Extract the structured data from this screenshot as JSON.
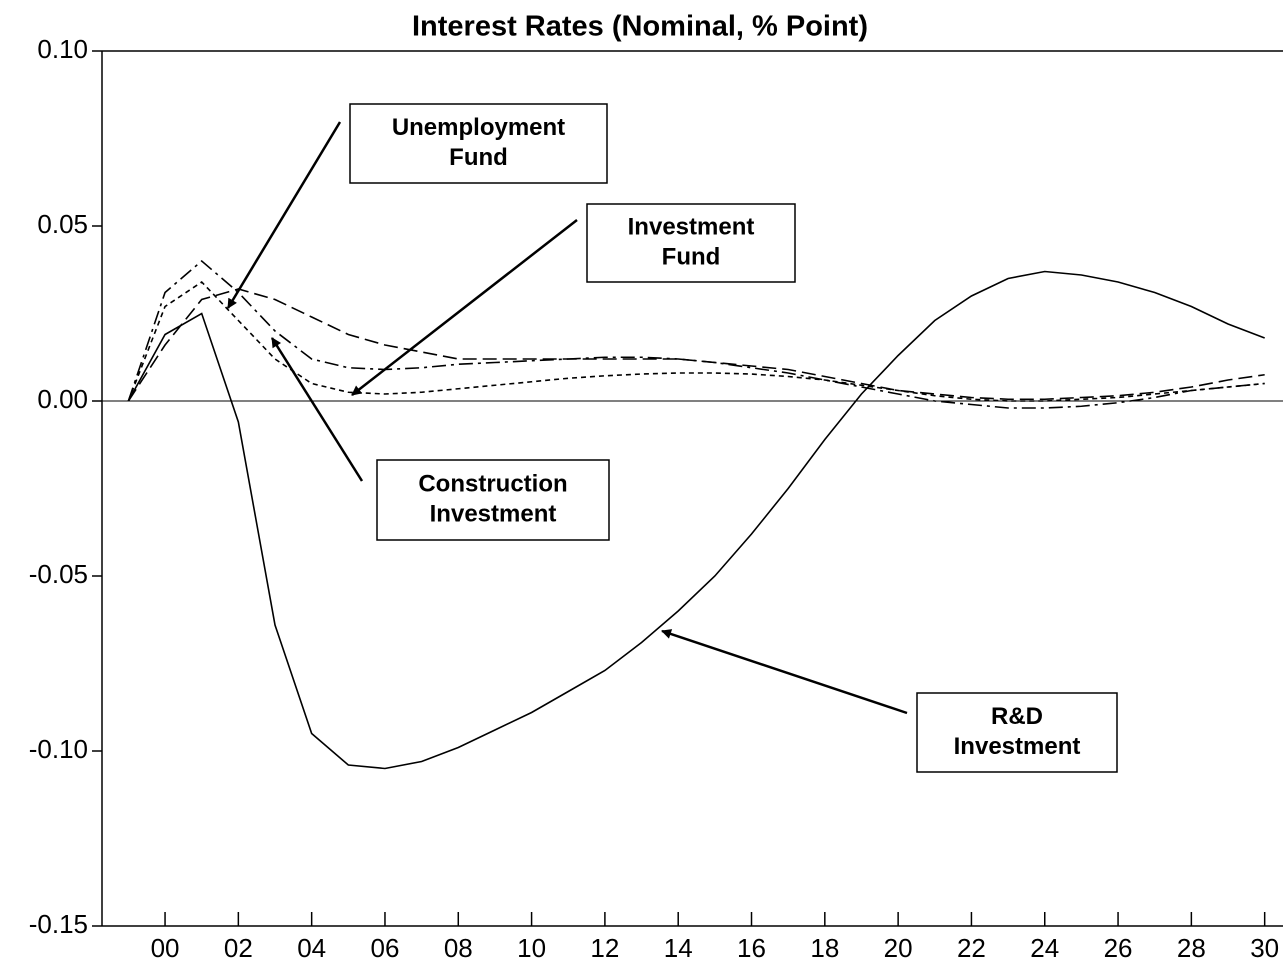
{
  "chart_data": {
    "type": "line",
    "title": "Interest Rates (Nominal, % Point)",
    "x": [
      -1,
      0,
      1,
      2,
      3,
      4,
      5,
      6,
      7,
      8,
      9,
      10,
      11,
      12,
      13,
      14,
      15,
      16,
      17,
      18,
      19,
      20,
      21,
      22,
      23,
      24,
      25,
      26,
      27,
      28,
      29,
      30
    ],
    "xlim": [
      -1.72,
      30.5
    ],
    "xticks": [
      {
        "value": 0,
        "label": "00"
      },
      {
        "value": 2,
        "label": "02"
      },
      {
        "value": 4,
        "label": "04"
      },
      {
        "value": 6,
        "label": "06"
      },
      {
        "value": 8,
        "label": "08"
      },
      10,
      12,
      14,
      16,
      18,
      20,
      22,
      24,
      26,
      28,
      30
    ],
    "ylim": [
      -0.15,
      0.1
    ],
    "yticks": [
      {
        "value": -0.15,
        "label": "-0.15"
      },
      {
        "value": -0.1,
        "label": "-0.10"
      },
      {
        "value": -0.05,
        "label": "-0.05"
      },
      {
        "value": 0,
        "label": "0.00"
      },
      {
        "value": 0.05,
        "label": "0.05"
      },
      {
        "value": 0.1,
        "label": "0.10"
      }
    ],
    "series": [
      {
        "color": "#000000",
        "dash": "none",
        "values": [
          0,
          0.019,
          0.025,
          -0.006,
          -0.064,
          -0.095,
          -0.104,
          -0.105,
          -0.103,
          -0.099,
          -0.094,
          -0.089,
          -0.083,
          -0.077,
          -0.069,
          -0.06,
          -0.05,
          -0.038,
          -0.025,
          -0.011,
          0.002,
          0.013,
          0.023,
          0.03,
          0.035,
          0.037,
          0.036,
          0.034,
          0.031,
          0.027,
          0.022,
          0.018
        ]
      },
      {
        "color": "#000000",
        "dash": "14 5 3 5",
        "values": [
          0,
          0.031,
          0.04,
          0.031,
          0.02,
          0.012,
          0.0095,
          0.009,
          0.0095,
          0.0105,
          0.011,
          0.0115,
          0.012,
          0.0125,
          0.0125,
          0.012,
          0.011,
          0.0095,
          0.008,
          0.006,
          0.004,
          0.002,
          0,
          -0.001,
          -0.002,
          -0.002,
          -0.0015,
          -0.0005,
          0.001,
          0.003,
          0.004,
          0.005
        ]
      },
      {
        "color": "#000000",
        "dash": "14 6",
        "values": [
          0,
          0.016,
          0.029,
          0.032,
          0.029,
          0.024,
          0.019,
          0.016,
          0.014,
          0.012,
          0.012,
          0.012,
          0.012,
          0.012,
          0.012,
          0.012,
          0.011,
          0.01,
          0.009,
          0.007,
          0.005,
          0.003,
          0.002,
          0.001,
          0.0005,
          0.0005,
          0.001,
          0.0015,
          0.0025,
          0.004,
          0.006,
          0.0075
        ]
      },
      {
        "color": "#000000",
        "dash": "5 4",
        "values": [
          0,
          0.027,
          0.034,
          0.023,
          0.012,
          0.005,
          0.0025,
          0.002,
          0.0025,
          0.0035,
          0.0045,
          0.0055,
          0.0065,
          0.0072,
          0.0077,
          0.008,
          0.008,
          0.0077,
          0.007,
          0.006,
          0.0045,
          0.003,
          0.0015,
          0.0005,
          0,
          0,
          0.0005,
          0.001,
          0.002,
          0.003,
          0.004,
          0.005
        ]
      }
    ],
    "annotations": [
      {
        "lines": [
          "Unemployment",
          "Fund"
        ]
      },
      {
        "lines": [
          "Investment",
          "Fund"
        ]
      },
      {
        "lines": [
          "Construction",
          "Investment"
        ]
      },
      {
        "lines": [
          "R&D",
          "Investment"
        ]
      }
    ]
  }
}
